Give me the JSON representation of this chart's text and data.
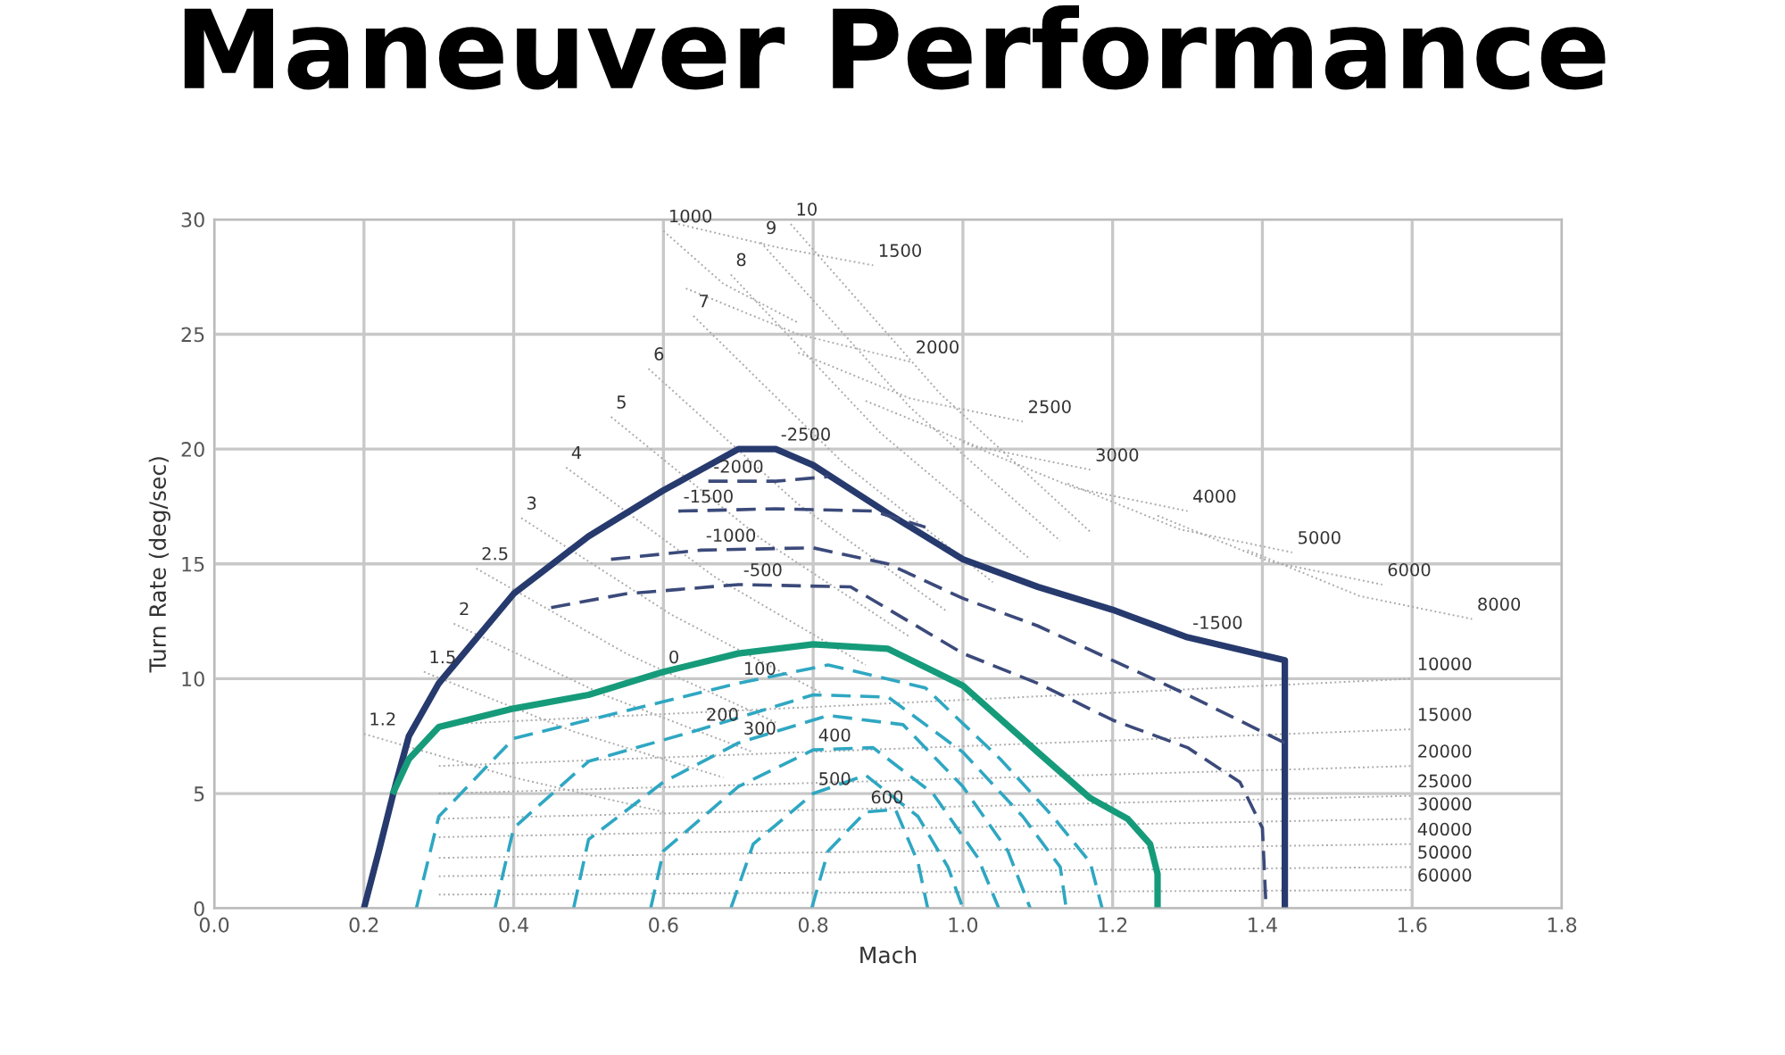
{
  "chart_data": {
    "type": "line",
    "title": "Maneuver Performance",
    "xlabel": "Mach",
    "ylabel": "Turn Rate (deg/sec)",
    "xlim": [
      0,
      1.8
    ],
    "ylim": [
      0,
      30
    ],
    "xticks": [
      {
        "value": 0,
        "label": "0.0"
      },
      {
        "value": 0.2,
        "label": "0.2"
      },
      {
        "value": 0.4,
        "label": "0.4"
      },
      {
        "value": 0.6,
        "label": "0.6"
      },
      {
        "value": 0.8,
        "label": "0.8"
      },
      {
        "value": 1.0,
        "label": "1.0"
      },
      {
        "value": 1.2,
        "label": "1.2"
      },
      {
        "value": 1.4,
        "label": "1.4"
      },
      {
        "value": 1.6,
        "label": "1.6"
      },
      {
        "value": 1.8,
        "label": "1.8"
      }
    ],
    "yticks": [
      0,
      5,
      10,
      15,
      20,
      25,
      30
    ],
    "grid": true,
    "legend": false,
    "marker": "none",
    "series": [
      {
        "color": "#aaaaaa",
        "line_style": "dotted",
        "x": [
          0.6,
          0.68,
          0.78
        ],
        "values": [
          29.5,
          27.2,
          25.5
        ]
      },
      {
        "color": "#aaaaaa",
        "line_style": "dotted",
        "x": [
          0.62,
          0.75,
          0.88
        ],
        "values": [
          29.8,
          28.8,
          28.0
        ]
      },
      {
        "color": "#aaaaaa",
        "line_style": "dotted",
        "x": [
          0.63,
          0.78,
          0.93
        ],
        "values": [
          27.0,
          25.0,
          23.8
        ]
      },
      {
        "color": "#aaaaaa",
        "line_style": "dotted",
        "x": [
          0.78,
          0.93,
          1.08
        ],
        "values": [
          24.2,
          22.2,
          21.2
        ]
      },
      {
        "color": "#aaaaaa",
        "line_style": "dotted",
        "x": [
          0.87,
          1.02,
          1.17
        ],
        "values": [
          22.1,
          20.1,
          19.1
        ]
      },
      {
        "color": "#aaaaaa",
        "line_style": "dotted",
        "x": [
          1.0,
          1.15,
          1.3
        ],
        "values": [
          20.3,
          18.3,
          17.3
        ]
      },
      {
        "color": "#aaaaaa",
        "line_style": "dotted",
        "x": [
          1.14,
          1.29,
          1.44
        ],
        "values": [
          18.5,
          16.5,
          15.5
        ]
      },
      {
        "color": "#aaaaaa",
        "line_style": "dotted",
        "x": [
          1.26,
          1.41,
          1.56
        ],
        "values": [
          17.1,
          15.1,
          14.1
        ]
      },
      {
        "color": "#aaaaaa",
        "line_style": "dotted",
        "x": [
          1.38,
          1.53,
          1.68
        ],
        "values": [
          15.6,
          13.6,
          12.6
        ]
      },
      {
        "color": "#aaaaaa",
        "line_style": "dotted",
        "x": [
          0.77,
          0.97,
          1.17
        ],
        "values": [
          29.8,
          22.4,
          16.4
        ]
      },
      {
        "color": "#aaaaaa",
        "line_style": "dotted",
        "x": [
          0.73,
          0.93,
          1.13
        ],
        "values": [
          29.0,
          21.8,
          16.0
        ]
      },
      {
        "color": "#aaaaaa",
        "line_style": "dotted",
        "x": [
          0.69,
          0.89,
          1.09
        ],
        "values": [
          27.6,
          20.7,
          15.2
        ]
      },
      {
        "color": "#aaaaaa",
        "line_style": "dotted",
        "x": [
          0.64,
          0.84,
          1.04
        ],
        "values": [
          25.8,
          19.4,
          14.2
        ]
      },
      {
        "color": "#aaaaaa",
        "line_style": "dotted",
        "x": [
          0.58,
          0.78,
          0.98
        ],
        "values": [
          23.5,
          17.6,
          12.9
        ]
      },
      {
        "color": "#aaaaaa",
        "line_style": "dotted",
        "x": [
          0.53,
          0.73,
          0.93
        ],
        "values": [
          21.4,
          16.1,
          11.8
        ]
      },
      {
        "color": "#aaaaaa",
        "line_style": "dotted",
        "x": [
          0.47,
          0.67,
          0.87
        ],
        "values": [
          19.2,
          14.4,
          10.6
        ]
      },
      {
        "color": "#aaaaaa",
        "line_style": "dotted",
        "x": [
          0.41,
          0.61,
          0.81
        ],
        "values": [
          17.0,
          12.8,
          9.4
        ]
      },
      {
        "color": "#aaaaaa",
        "line_style": "dotted",
        "x": [
          0.35,
          0.55,
          0.75
        ],
        "values": [
          14.8,
          11.1,
          8.1
        ]
      },
      {
        "color": "#aaaaaa",
        "line_style": "dotted",
        "x": [
          0.32,
          0.52,
          0.72
        ],
        "values": [
          12.4,
          9.3,
          6.8
        ]
      },
      {
        "color": "#aaaaaa",
        "line_style": "dotted",
        "x": [
          0.28,
          0.48,
          0.68
        ],
        "values": [
          10.3,
          7.7,
          5.7
        ]
      },
      {
        "color": "#aaaaaa",
        "line_style": "dotted",
        "x": [
          0.2,
          0.4,
          0.6
        ],
        "values": [
          7.6,
          5.7,
          4.2
        ]
      },
      {
        "color": "#aaaaaa",
        "line_style": "dotted",
        "x": [
          0.3,
          0.95,
          1.6
        ],
        "values": [
          8.0,
          9.0,
          10.0
        ]
      },
      {
        "color": "#aaaaaa",
        "line_style": "dotted",
        "x": [
          0.3,
          0.95,
          1.6
        ],
        "values": [
          6.2,
          7.0,
          7.8
        ]
      },
      {
        "color": "#aaaaaa",
        "line_style": "dotted",
        "x": [
          0.3,
          0.95,
          1.6
        ],
        "values": [
          5.0,
          5.6,
          6.2
        ]
      },
      {
        "color": "#aaaaaa",
        "line_style": "dotted",
        "x": [
          0.3,
          0.95,
          1.6
        ],
        "values": [
          3.9,
          4.4,
          4.9
        ]
      },
      {
        "color": "#aaaaaa",
        "line_style": "dotted",
        "x": [
          0.3,
          0.95,
          1.6
        ],
        "values": [
          3.1,
          3.5,
          3.9
        ]
      },
      {
        "color": "#aaaaaa",
        "line_style": "dotted",
        "x": [
          0.3,
          0.95,
          1.6
        ],
        "values": [
          2.2,
          2.5,
          2.8
        ]
      },
      {
        "color": "#aaaaaa",
        "line_style": "dotted",
        "x": [
          0.3,
          0.95,
          1.6
        ],
        "values": [
          1.4,
          1.6,
          1.8
        ]
      },
      {
        "color": "#aaaaaa",
        "line_style": "dotted",
        "x": [
          0.3,
          0.95,
          1.6
        ],
        "values": [
          0.6,
          0.7,
          0.8
        ]
      },
      {
        "color": "#273a6e",
        "line_style": "solid",
        "x": [
          0.2,
          0.22,
          0.24,
          0.26,
          0.3,
          0.4,
          0.5,
          0.6,
          0.7,
          0.75,
          0.8,
          0.9,
          1.0,
          1.1,
          1.2,
          1.3,
          1.43,
          1.43
        ],
        "values": [
          0,
          2.5,
          5.1,
          7.5,
          9.8,
          13.7,
          16.2,
          18.2,
          20,
          20,
          19.3,
          17.2,
          15.2,
          14,
          13,
          11.8,
          10.8,
          0
        ]
      },
      {
        "color": "#169b7a",
        "line_style": "solid",
        "x": [
          0.24,
          0.26,
          0.3,
          0.4,
          0.5,
          0.6,
          0.7,
          0.8,
          0.9,
          1.0,
          1.1,
          1.17,
          1.22,
          1.25,
          1.26,
          1.26
        ],
        "values": [
          5.1,
          6.5,
          7.9,
          8.7,
          9.3,
          10.3,
          11.1,
          11.5,
          11.3,
          9.7,
          6.8,
          4.8,
          3.9,
          2.8,
          1.5,
          0
        ]
      },
      {
        "color": "#3b4a7a",
        "line_style": "dashed",
        "x": [
          0.45,
          0.55,
          0.7,
          0.85,
          1.0,
          1.1,
          1.2,
          1.3,
          1.37,
          1.4,
          1.405
        ],
        "values": [
          13.1,
          13.7,
          14.1,
          14.0,
          11.1,
          9.8,
          8.2,
          7.0,
          5.5,
          3.5,
          0
        ]
      },
      {
        "color": "#3b4a7a",
        "line_style": "dashed",
        "x": [
          0.53,
          0.65,
          0.8,
          0.9,
          1.0,
          1.1,
          1.2,
          1.3,
          1.43
        ],
        "values": [
          15.2,
          15.6,
          15.7,
          15.0,
          13.5,
          12.3,
          10.8,
          9.3,
          7.2
        ]
      },
      {
        "color": "#3b4a7a",
        "line_style": "dashed",
        "x": [
          0.62,
          0.75,
          0.88,
          0.95
        ],
        "values": [
          17.3,
          17.4,
          17.3,
          16.6
        ]
      },
      {
        "color": "#3b4a7a",
        "line_style": "dashed",
        "x": [
          0.66,
          0.75,
          0.82
        ],
        "values": [
          18.6,
          18.6,
          18.8
        ]
      },
      {
        "color": "#2fa7c2",
        "line_style": "dashed",
        "x": [
          0.27,
          0.3,
          0.4,
          0.55,
          0.7,
          0.82,
          0.95,
          1.05,
          1.12,
          1.17,
          1.186
        ],
        "values": [
          0,
          4,
          7.4,
          8.6,
          9.8,
          10.6,
          9.6,
          6.5,
          4.0,
          2.0,
          0
        ]
      },
      {
        "color": "#2fa7c2",
        "line_style": "dashed",
        "x": [
          0.375,
          0.4,
          0.5,
          0.65,
          0.8,
          0.9,
          1.0,
          1.08,
          1.13,
          1.138
        ],
        "values": [
          0,
          3.5,
          6.4,
          7.8,
          9.3,
          9.2,
          6.8,
          4.0,
          1.8,
          0
        ]
      },
      {
        "color": "#2fa7c2",
        "line_style": "dashed",
        "x": [
          0.48,
          0.5,
          0.6,
          0.7,
          0.82,
          0.92,
          1.0,
          1.06,
          1.09
        ],
        "values": [
          0,
          3,
          5.5,
          7.2,
          8.4,
          8.0,
          5.3,
          2.5,
          0
        ]
      },
      {
        "color": "#2fa7c2",
        "line_style": "dashed",
        "x": [
          0.583,
          0.6,
          0.7,
          0.8,
          0.88,
          0.96,
          1.02,
          1.048
        ],
        "values": [
          0,
          2.5,
          5.3,
          6.9,
          7.0,
          5.0,
          2.2,
          0
        ]
      },
      {
        "color": "#2fa7c2",
        "line_style": "dashed",
        "x": [
          0.69,
          0.72,
          0.8,
          0.87,
          0.94,
          0.98,
          1.0
        ],
        "values": [
          0,
          2.8,
          5.0,
          5.8,
          4.0,
          1.8,
          0
        ]
      },
      {
        "color": "#2fa7c2",
        "line_style": "dashed",
        "x": [
          0.798,
          0.82,
          0.87,
          0.91,
          0.94,
          0.953
        ],
        "values": [
          0,
          2.5,
          4.2,
          4.3,
          2.0,
          0
        ]
      }
    ],
    "annotations": [
      {
        "text": "-2500",
        "x": 0.75,
        "y": 20
      },
      {
        "text": "-2000",
        "x": 0.66,
        "y": 18.6
      },
      {
        "text": "-1500",
        "x": 0.62,
        "y": 17.3
      },
      {
        "text": "-1000",
        "x": 0.65,
        "y": 15.6
      },
      {
        "text": "-500",
        "x": 0.7,
        "y": 14.1
      },
      {
        "text": "0",
        "x": 0.6,
        "y": 10.3
      },
      {
        "text": "100",
        "x": 0.7,
        "y": 9.8
      },
      {
        "text": "200",
        "x": 0.65,
        "y": 7.8
      },
      {
        "text": "300",
        "x": 0.7,
        "y": 7.2
      },
      {
        "text": "400",
        "x": 0.8,
        "y": 6.9
      },
      {
        "text": "500",
        "x": 0.8,
        "y": 5.0
      },
      {
        "text": "600",
        "x": 0.87,
        "y": 4.2
      },
      {
        "text": "-1500",
        "x": 1.3,
        "y": 11.8
      },
      {
        "text": "1000",
        "x": 0.6,
        "y": 29.5
      },
      {
        "text": "1500",
        "x": 0.88,
        "y": 28.0
      },
      {
        "text": "2000",
        "x": 0.93,
        "y": 23.8
      },
      {
        "text": "2500",
        "x": 1.08,
        "y": 21.2
      },
      {
        "text": "3000",
        "x": 1.17,
        "y": 19.1
      },
      {
        "text": "4000",
        "x": 1.3,
        "y": 17.3
      },
      {
        "text": "5000",
        "x": 1.44,
        "y": 15.5
      },
      {
        "text": "6000",
        "x": 1.56,
        "y": 14.1
      },
      {
        "text": "8000",
        "x": 1.68,
        "y": 12.6
      },
      {
        "text": "10",
        "x": 0.77,
        "y": 29.8
      },
      {
        "text": "9",
        "x": 0.73,
        "y": 29.0
      },
      {
        "text": "8",
        "x": 0.69,
        "y": 27.6
      },
      {
        "text": "7",
        "x": 0.64,
        "y": 25.8
      },
      {
        "text": "6",
        "x": 0.58,
        "y": 23.5
      },
      {
        "text": "5",
        "x": 0.53,
        "y": 21.4
      },
      {
        "text": "4",
        "x": 0.47,
        "y": 19.2
      },
      {
        "text": "3",
        "x": 0.41,
        "y": 17.0
      },
      {
        "text": "2.5",
        "x": 0.35,
        "y": 14.8
      },
      {
        "text": "2",
        "x": 0.32,
        "y": 12.4
      },
      {
        "text": "1.5",
        "x": 0.28,
        "y": 10.3
      },
      {
        "text": "1.2",
        "x": 0.2,
        "y": 7.6
      },
      {
        "text": "10000",
        "x": 1.6,
        "y": 10.0
      },
      {
        "text": "15000",
        "x": 1.6,
        "y": 7.8
      },
      {
        "text": "20000",
        "x": 1.6,
        "y": 6.2
      },
      {
        "text": "25000",
        "x": 1.6,
        "y": 4.9
      },
      {
        "text": "30000",
        "x": 1.6,
        "y": 3.9
      },
      {
        "text": "40000",
        "x": 1.6,
        "y": 2.8
      },
      {
        "text": "50000",
        "x": 1.6,
        "y": 1.8
      },
      {
        "text": "60000",
        "x": 1.6,
        "y": 0.8
      }
    ]
  }
}
